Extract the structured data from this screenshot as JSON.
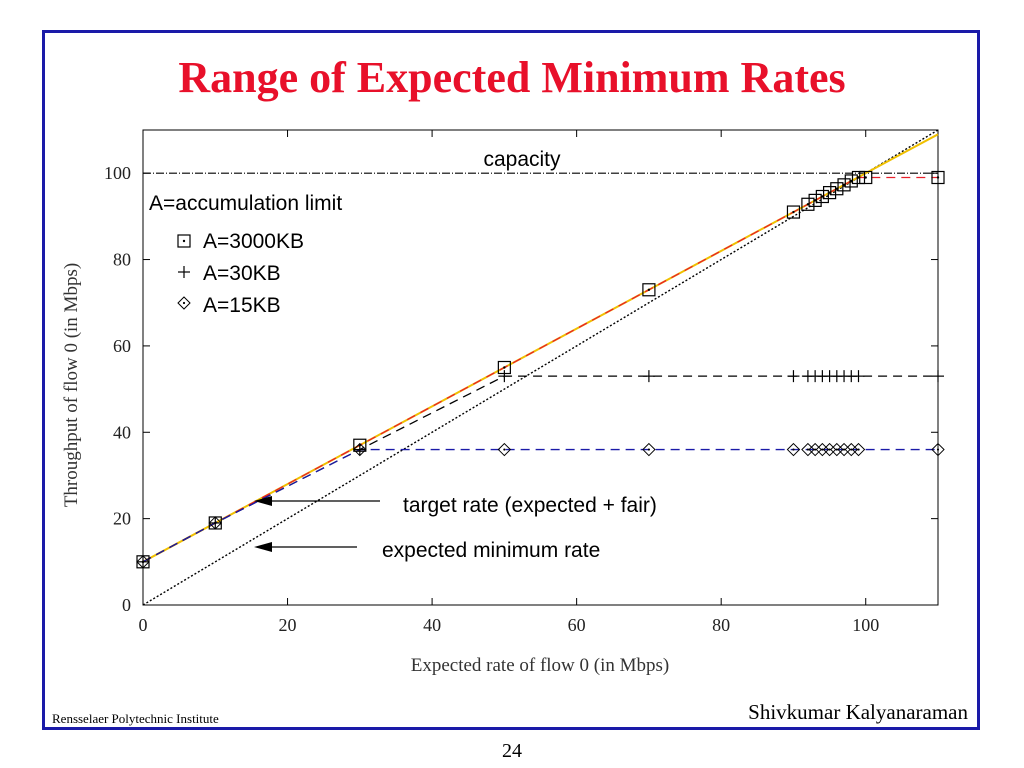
{
  "slide": {
    "title": "Range of Expected Minimum Rates",
    "footer_left": "Rensselaer Polytechnic Institute",
    "footer_right": "Shivkumar Kalyanaraman",
    "page_number": "24",
    "title_color": "#e8102a",
    "frame_color": "#1a1aa8"
  },
  "chart_data": {
    "type": "scatter",
    "title": "",
    "xlabel": "Expected rate of flow 0 (in Mbps)",
    "ylabel": "Throughput of flow 0 (in Mbps)",
    "xlim": [
      0,
      110
    ],
    "ylim": [
      0,
      110
    ],
    "xticks": [
      0,
      20,
      40,
      60,
      80,
      100
    ],
    "yticks": [
      0,
      20,
      40,
      60,
      80,
      100
    ],
    "grid": false,
    "legend_title": "A=accumulation limit",
    "legend_position": "top-left",
    "series": [
      {
        "name": "A=3000KB",
        "marker": "square-dot",
        "line_color": "#e8202a",
        "line_style": "dashed",
        "x": [
          0,
          10,
          30,
          50,
          70,
          90,
          92,
          93,
          94,
          95,
          96,
          97,
          98,
          99,
          100,
          110
        ],
        "y": [
          10,
          19,
          37,
          55,
          73,
          91,
          92.8,
          93.7,
          94.6,
          95.5,
          96.4,
          97.3,
          98.2,
          99,
          99,
          99
        ]
      },
      {
        "name": "A=30KB",
        "marker": "plus",
        "line_color": "#000000",
        "line_style": "dashed",
        "x": [
          0,
          10,
          30,
          50,
          70,
          90,
          92,
          93,
          94,
          95,
          96,
          97,
          98,
          99,
          110
        ],
        "y": [
          10,
          19,
          36,
          53,
          53,
          53,
          53,
          53,
          53,
          53,
          53,
          53,
          53,
          53,
          53
        ]
      },
      {
        "name": "A=15KB",
        "marker": "diamond-dot",
        "line_color": "#1a1aa8",
        "line_style": "dashed",
        "x": [
          0,
          10,
          30,
          50,
          70,
          90,
          92,
          93,
          94,
          95,
          96,
          97,
          98,
          99,
          110
        ],
        "y": [
          10,
          19,
          36,
          36,
          36,
          36,
          36,
          36,
          36,
          36,
          36,
          36,
          36,
          36,
          36
        ]
      }
    ],
    "reference_lines": [
      {
        "label": "capacity",
        "kind": "horizontal",
        "y": 100,
        "color": "#000000"
      },
      {
        "label": "expected minimum rate",
        "kind": "line",
        "points": [
          [
            0,
            0
          ],
          [
            110,
            110
          ]
        ],
        "color": "#000000"
      },
      {
        "label": "target rate (expected + fair)",
        "kind": "line",
        "points": [
          [
            0,
            10
          ],
          [
            110,
            109
          ]
        ],
        "color": "#f0c000"
      }
    ]
  }
}
